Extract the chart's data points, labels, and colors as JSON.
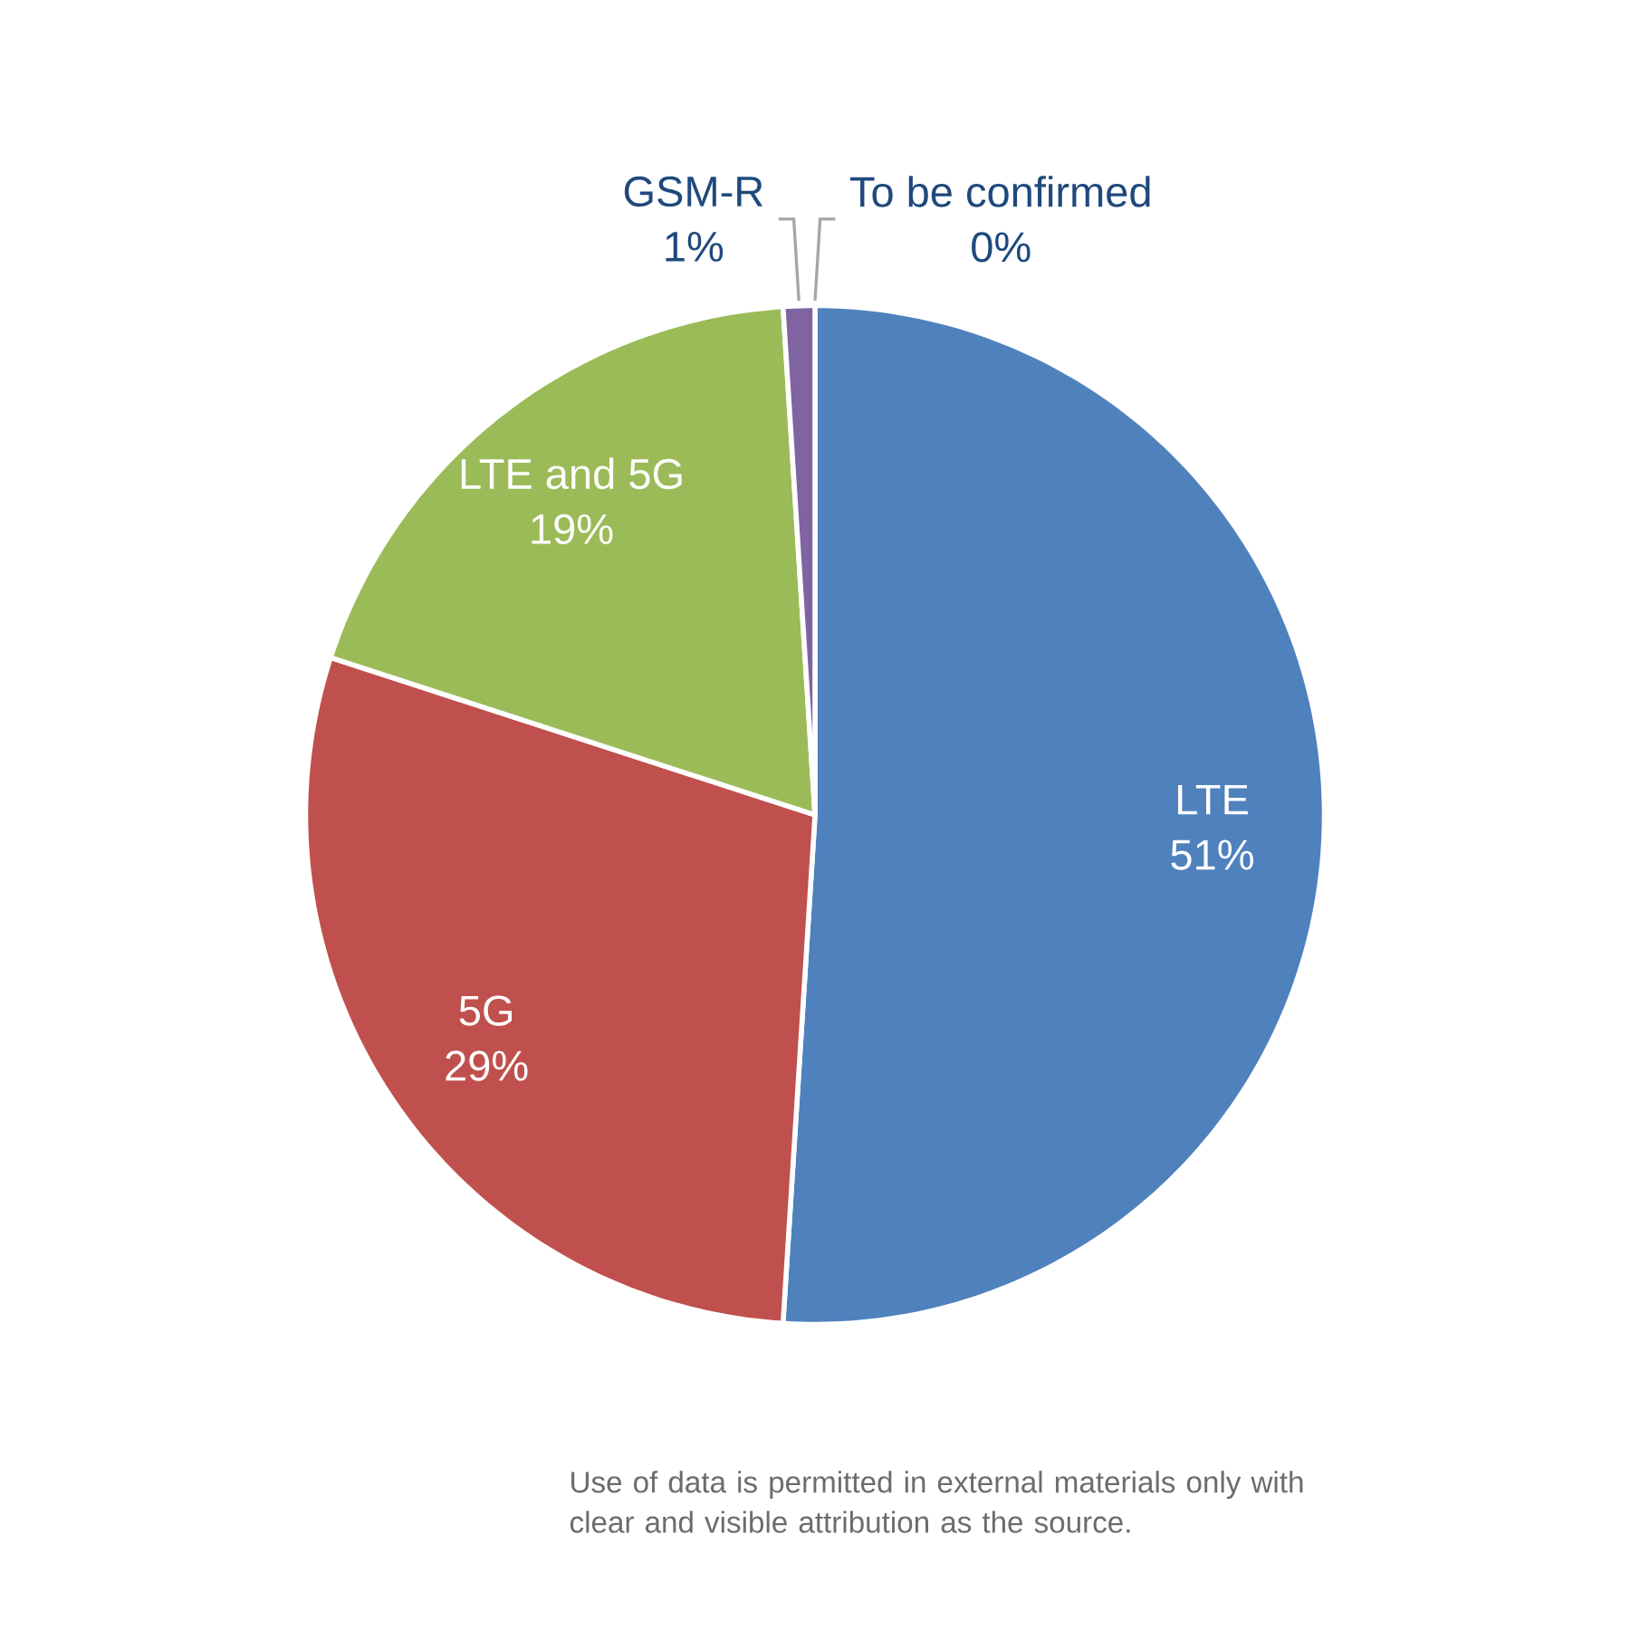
{
  "chart_data": {
    "type": "pie",
    "categories": [
      "LTE",
      "5G",
      "LTE and 5G",
      "GSM-R",
      "To be confirmed"
    ],
    "values": [
      51,
      29,
      19,
      1,
      0
    ],
    "value_labels": [
      "51%",
      "29%",
      "19%",
      "1%",
      "0%"
    ],
    "colors": [
      "#4f81bd",
      "#c0504d",
      "#9bbb59",
      "#8064a2",
      "#4bacc6"
    ],
    "annotations": [
      "Use of data is permitted in external materials only with clear and visible attribution as the source."
    ]
  }
}
